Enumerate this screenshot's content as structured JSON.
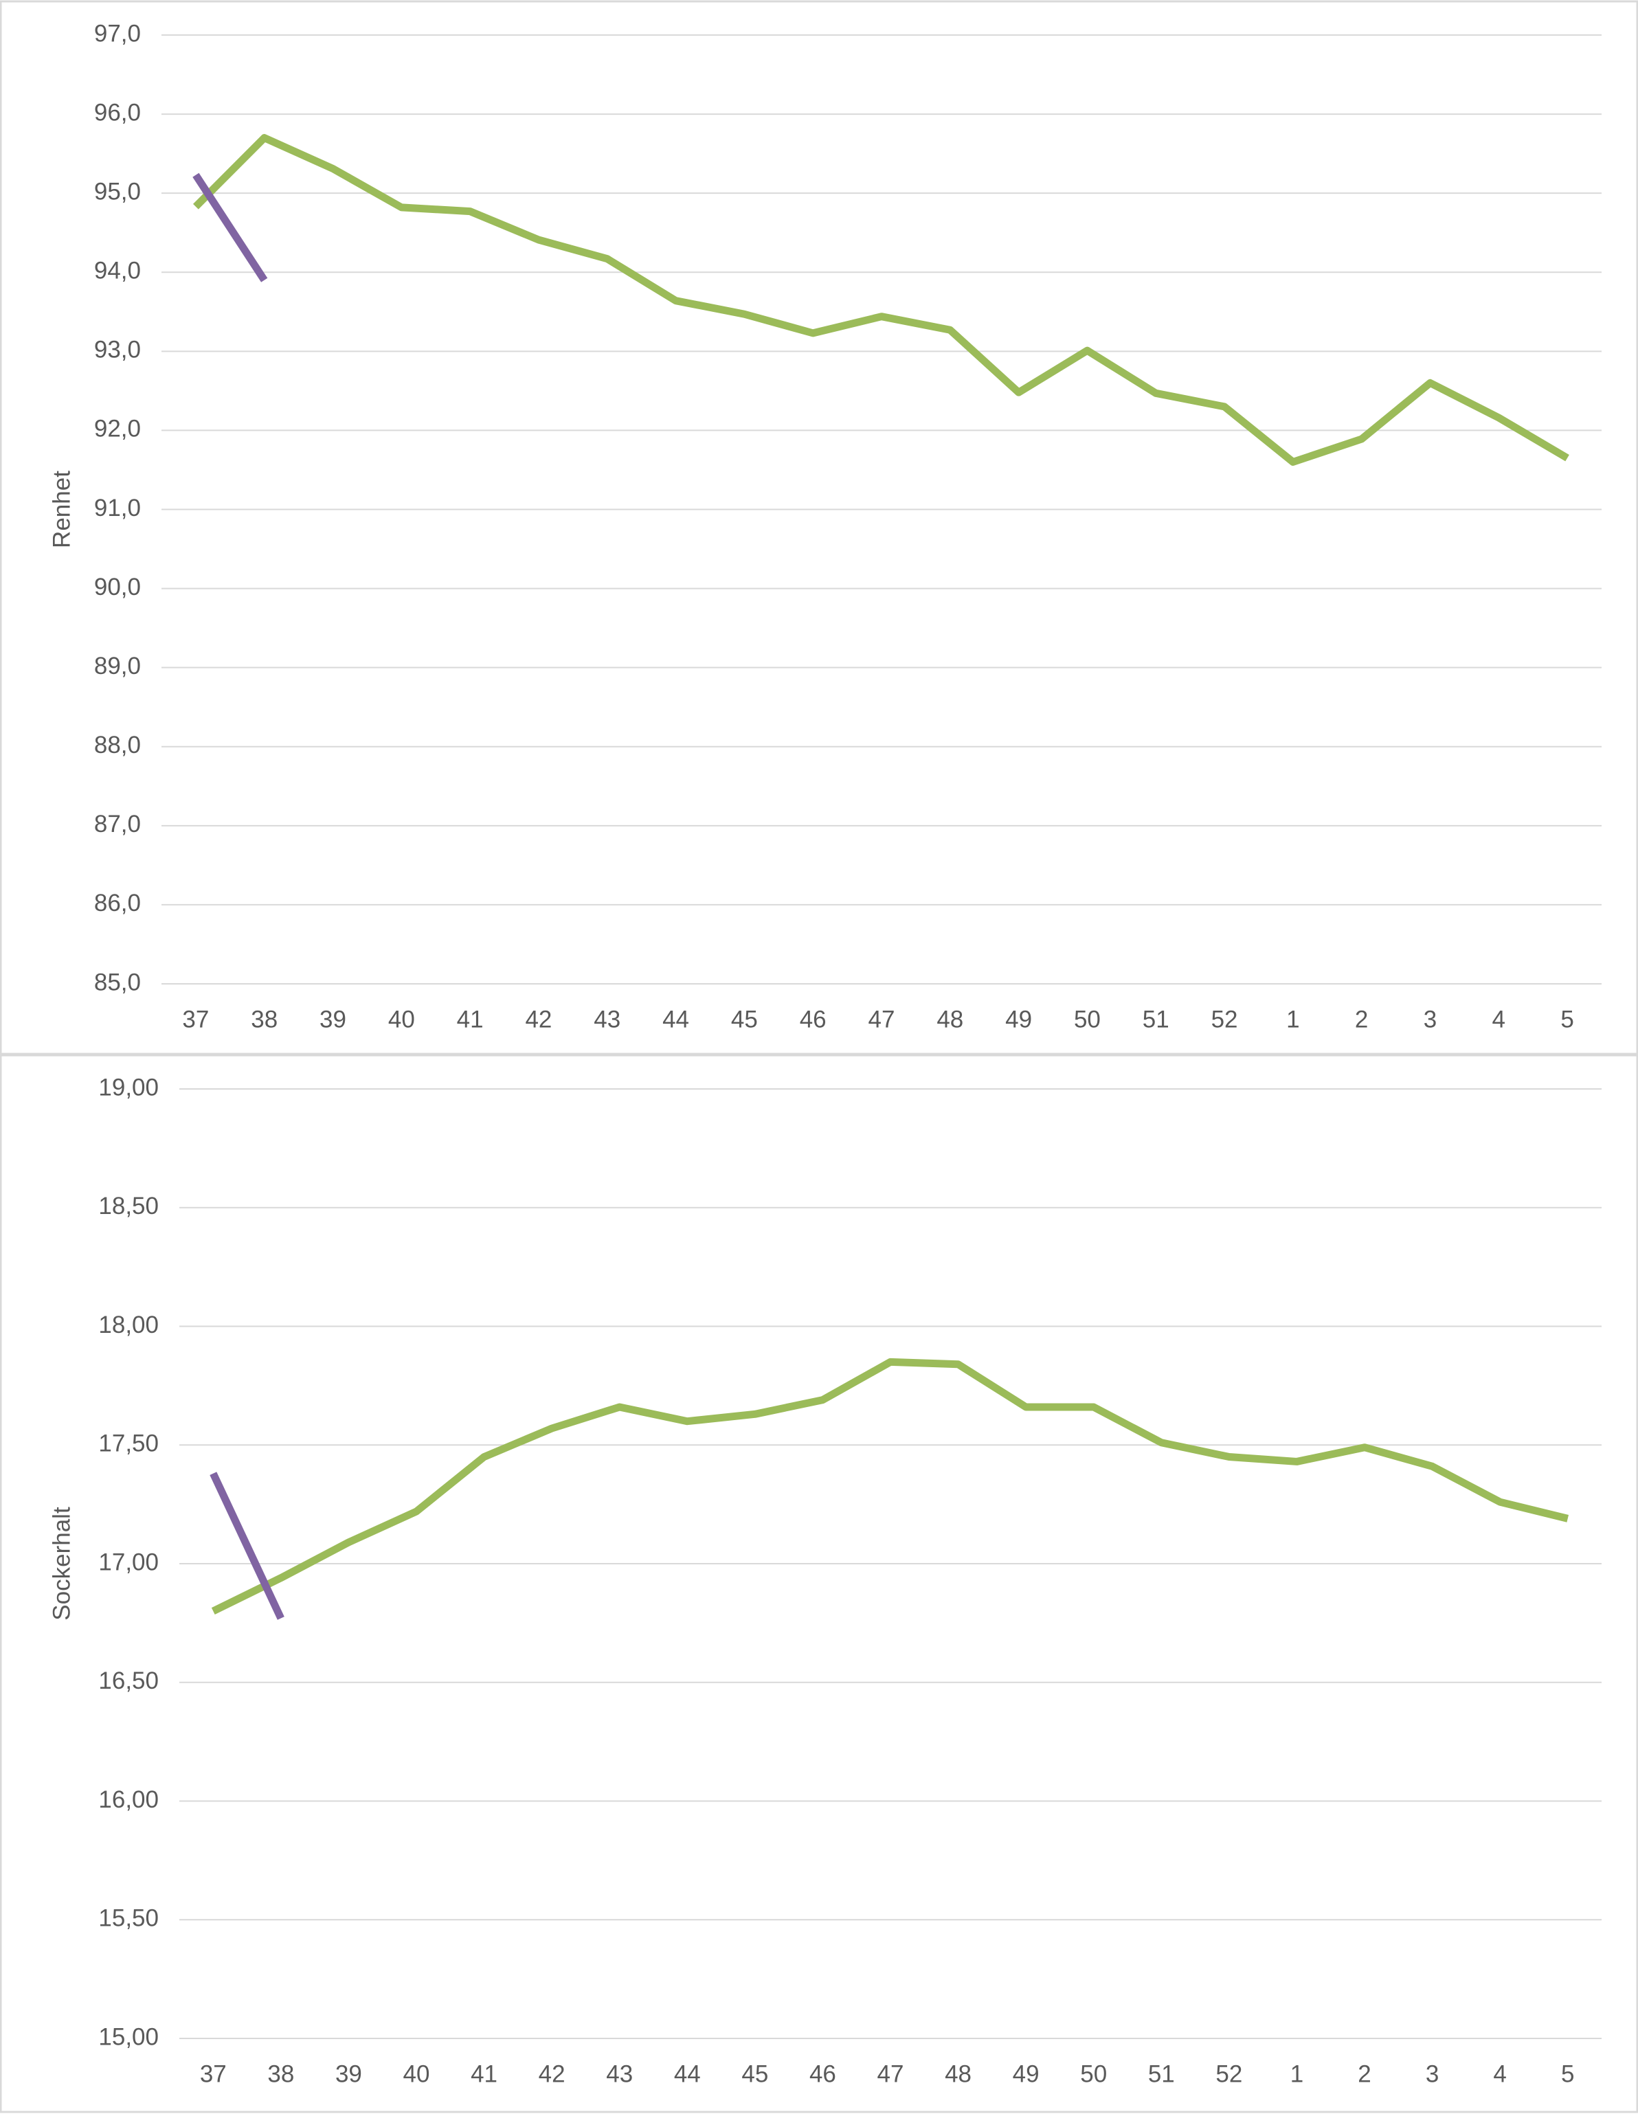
{
  "chart_data": [
    {
      "type": "line",
      "y_label": "Renhet",
      "categories": [
        "37",
        "38",
        "39",
        "40",
        "41",
        "42",
        "43",
        "44",
        "45",
        "46",
        "47",
        "48",
        "49",
        "50",
        "51",
        "52",
        "1",
        "2",
        "3",
        "4",
        "5"
      ],
      "series": [
        {
          "color": "#9bbb59",
          "values": [
            94.83,
            95.7,
            95.31,
            94.82,
            94.77,
            94.41,
            94.17,
            93.64,
            93.47,
            93.23,
            93.44,
            93.27,
            92.48,
            93.01,
            92.47,
            92.3,
            91.6,
            91.89,
            92.6,
            92.16,
            91.65
          ]
        },
        {
          "color": "#8064a2",
          "values": [
            95.23,
            93.9,
            null,
            null,
            null,
            null,
            null,
            null,
            null,
            null,
            null,
            null,
            null,
            null,
            null,
            null,
            null,
            null,
            null,
            null,
            null
          ]
        }
      ],
      "ylim": [
        85,
        97
      ],
      "yticks": [
        {
          "value": 85,
          "label": "85,0"
        },
        {
          "value": 86,
          "label": "86,0"
        },
        {
          "value": 87,
          "label": "87,0"
        },
        {
          "value": 88,
          "label": "88,0"
        },
        {
          "value": 89,
          "label": "89,0"
        },
        {
          "value": 90,
          "label": "90,0"
        },
        {
          "value": 91,
          "label": "91,0"
        },
        {
          "value": 92,
          "label": "92,0"
        },
        {
          "value": 93,
          "label": "93,0"
        },
        {
          "value": 94,
          "label": "94,0"
        },
        {
          "value": 95,
          "label": "95,0"
        },
        {
          "value": 96,
          "label": "96,0"
        },
        {
          "value": 97,
          "label": "97,0"
        }
      ],
      "grid": true
    },
    {
      "type": "line",
      "y_label": "Sockerhalt",
      "categories": [
        "37",
        "38",
        "39",
        "40",
        "41",
        "42",
        "43",
        "44",
        "45",
        "46",
        "47",
        "48",
        "49",
        "50",
        "51",
        "52",
        "1",
        "2",
        "3",
        "4",
        "5"
      ],
      "series": [
        {
          "color": "#9bbb59",
          "values": [
            16.8,
            16.94,
            17.09,
            17.22,
            17.45,
            17.57,
            17.66,
            17.6,
            17.63,
            17.69,
            17.85,
            17.84,
            17.66,
            17.66,
            17.51,
            17.45,
            17.43,
            17.49,
            17.41,
            17.26,
            17.19
          ]
        },
        {
          "color": "#8064a2",
          "values": [
            17.38,
            16.77,
            null,
            null,
            null,
            null,
            null,
            null,
            null,
            null,
            null,
            null,
            null,
            null,
            null,
            null,
            null,
            null,
            null,
            null,
            null
          ]
        }
      ],
      "ylim": [
        15,
        19
      ],
      "yticks": [
        {
          "value": 15,
          "label": "15,00"
        },
        {
          "value": 15.5,
          "label": "15,50"
        },
        {
          "value": 16,
          "label": "16,00"
        },
        {
          "value": 16.5,
          "label": "16,50"
        },
        {
          "value": 17,
          "label": "17,00"
        },
        {
          "value": 17.5,
          "label": "17,50"
        },
        {
          "value": 18,
          "label": "18,00"
        },
        {
          "value": 18.5,
          "label": "18,50"
        },
        {
          "value": 19,
          "label": "19,00"
        }
      ],
      "grid": true
    }
  ]
}
